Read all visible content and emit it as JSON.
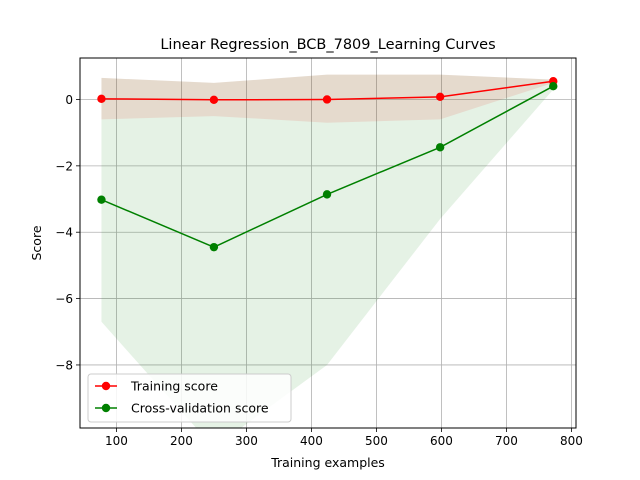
{
  "chart_data": {
    "type": "line",
    "title": "Linear Regression_BCB_7809_Learning Curves",
    "xlabel": "Training examples",
    "ylabel": "Score",
    "xlim": [
      44,
      807
    ],
    "ylim": [
      -9.9,
      1.25
    ],
    "xticks": [
      100,
      200,
      300,
      400,
      500,
      600,
      700,
      800
    ],
    "yticks": [
      0,
      -2,
      -4,
      -6,
      -8
    ],
    "grid": true,
    "legend_position": "lower-left",
    "x": [
      77,
      250,
      424,
      598,
      772
    ],
    "series": [
      {
        "name": "Training score",
        "color": "#ff0000",
        "values": [
          0.02,
          -0.01,
          0.0,
          0.08,
          0.55
        ],
        "band_upper": [
          0.65,
          0.5,
          0.75,
          0.75,
          0.6
        ],
        "band_lower": [
          -0.6,
          -0.5,
          -0.7,
          -0.6,
          0.5
        ]
      },
      {
        "name": "Cross-validation score",
        "color": "#008000",
        "values": [
          -3.02,
          -4.45,
          -2.86,
          -1.44,
          0.4
        ],
        "band_upper": [
          0.65,
          0.5,
          0.75,
          0.75,
          0.6
        ],
        "band_lower": [
          -6.7,
          -10.5,
          -8.0,
          -3.6,
          0.3
        ],
        "band_color": "#008000"
      }
    ]
  }
}
